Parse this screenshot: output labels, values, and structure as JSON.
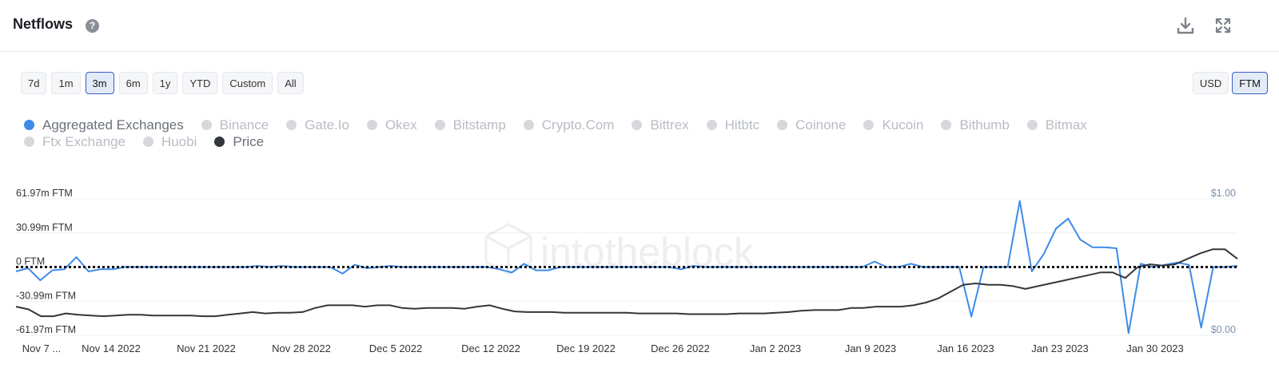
{
  "header": {
    "title": "Netflows",
    "help_icon": "question-circle-icon",
    "actions": [
      {
        "icon": "download-icon"
      },
      {
        "icon": "fullscreen-icon"
      }
    ]
  },
  "range_buttons": [
    {
      "label": "7d",
      "active": false
    },
    {
      "label": "1m",
      "active": false
    },
    {
      "label": "3m",
      "active": true
    },
    {
      "label": "6m",
      "active": false
    },
    {
      "label": "1y",
      "active": false
    },
    {
      "label": "YTD",
      "active": false
    },
    {
      "label": "Custom",
      "active": false
    },
    {
      "label": "All",
      "active": false
    }
  ],
  "unit_buttons": [
    {
      "label": "USD",
      "active": false
    },
    {
      "label": "FTM",
      "active": true
    }
  ],
  "legend": [
    [
      {
        "label": "Aggregated Exchanges",
        "color": "#3d8be8",
        "enabled": true
      },
      {
        "label": "Binance",
        "enabled": false
      },
      {
        "label": "Gate.Io",
        "enabled": false
      },
      {
        "label": "Okex",
        "enabled": false
      },
      {
        "label": "Bitstamp",
        "enabled": false
      },
      {
        "label": "Crypto.Com",
        "enabled": false
      },
      {
        "label": "Bittrex",
        "enabled": false
      },
      {
        "label": "Hitbtc",
        "enabled": false
      },
      {
        "label": "Coinone",
        "enabled": false
      },
      {
        "label": "Kucoin",
        "enabled": false
      },
      {
        "label": "Bithumb",
        "enabled": false
      },
      {
        "label": "Bitmax",
        "enabled": false
      }
    ],
    [
      {
        "label": "Ftx Exchange",
        "enabled": false
      },
      {
        "label": "Huobi",
        "enabled": false
      },
      {
        "label": "Price",
        "color": "#33363b",
        "enabled": true
      }
    ]
  ],
  "watermark": "intotheblock",
  "chart_data": {
    "type": "line",
    "x_tick_labels": [
      "Nov 7 ...",
      "Nov 14 2022",
      "Nov 21 2022",
      "Nov 28 2022",
      "Dec 5 2022",
      "Dec 12 2022",
      "Dec 19 2022",
      "Dec 26 2022",
      "Jan 2 2023",
      "Jan 9 2023",
      "Jan 16 2023",
      "Jan 23 2023",
      "Jan 30 2023"
    ],
    "x_range": [
      "2022-11-07",
      "2023-02-05"
    ],
    "y_left": {
      "ticks": [
        "61.97m FTM",
        "30.99m FTM",
        "0 FTM",
        "-30.99m FTM",
        "-61.97m FTM"
      ],
      "min": -61.97,
      "max": 61.97,
      "unit": "m FTM"
    },
    "y_right": {
      "ticks": [
        "$1.00",
        "$0.00"
      ],
      "min": 0,
      "max": 1
    },
    "zero_line": "dotted",
    "grid": true,
    "series": [
      {
        "name": "Aggregated Exchanges",
        "color": "#3d8be8",
        "axis": "left",
        "values": [
          -4,
          -1,
          -12,
          -3,
          -2,
          9,
          -4,
          -2,
          -2,
          0,
          0,
          0,
          0,
          0,
          0,
          0,
          0,
          0,
          0,
          0,
          1,
          0,
          1,
          0,
          0,
          0,
          0,
          -6,
          2,
          -1,
          0,
          1,
          0,
          0,
          0,
          0,
          0,
          0,
          0,
          0,
          -2,
          -5,
          3,
          -3,
          -3,
          0,
          0,
          0,
          0,
          0,
          0,
          0,
          0,
          0,
          0,
          -2,
          1,
          0,
          0,
          0,
          0,
          0,
          0,
          0,
          0,
          0,
          0,
          0,
          0,
          0,
          0,
          5,
          0,
          0,
          3,
          0,
          0,
          0,
          0,
          -45,
          0,
          0,
          0,
          60,
          -4,
          12,
          35,
          44,
          25,
          18,
          18,
          17,
          -60,
          3,
          0,
          2,
          4,
          2,
          -55,
          0,
          0,
          1
        ]
      },
      {
        "name": "Price",
        "color": "#33363b",
        "axis": "right",
        "values": [
          0.21,
          0.19,
          0.14,
          0.14,
          0.16,
          0.15,
          0.145,
          0.14,
          0.145,
          0.15,
          0.15,
          0.145,
          0.145,
          0.145,
          0.145,
          0.14,
          0.14,
          0.15,
          0.16,
          0.17,
          0.16,
          0.165,
          0.165,
          0.17,
          0.2,
          0.22,
          0.22,
          0.22,
          0.21,
          0.22,
          0.22,
          0.2,
          0.195,
          0.2,
          0.2,
          0.2,
          0.195,
          0.21,
          0.22,
          0.195,
          0.175,
          0.17,
          0.17,
          0.17,
          0.165,
          0.165,
          0.165,
          0.165,
          0.165,
          0.165,
          0.16,
          0.16,
          0.16,
          0.16,
          0.155,
          0.155,
          0.155,
          0.155,
          0.16,
          0.16,
          0.16,
          0.165,
          0.17,
          0.18,
          0.185,
          0.185,
          0.185,
          0.2,
          0.2,
          0.21,
          0.21,
          0.21,
          0.22,
          0.24,
          0.27,
          0.32,
          0.37,
          0.38,
          0.37,
          0.37,
          0.36,
          0.34,
          0.36,
          0.38,
          0.4,
          0.42,
          0.44,
          0.46,
          0.46,
          0.42,
          0.5,
          0.52,
          0.51,
          0.52,
          0.56,
          0.6,
          0.63,
          0.63,
          0.56
        ]
      }
    ]
  }
}
